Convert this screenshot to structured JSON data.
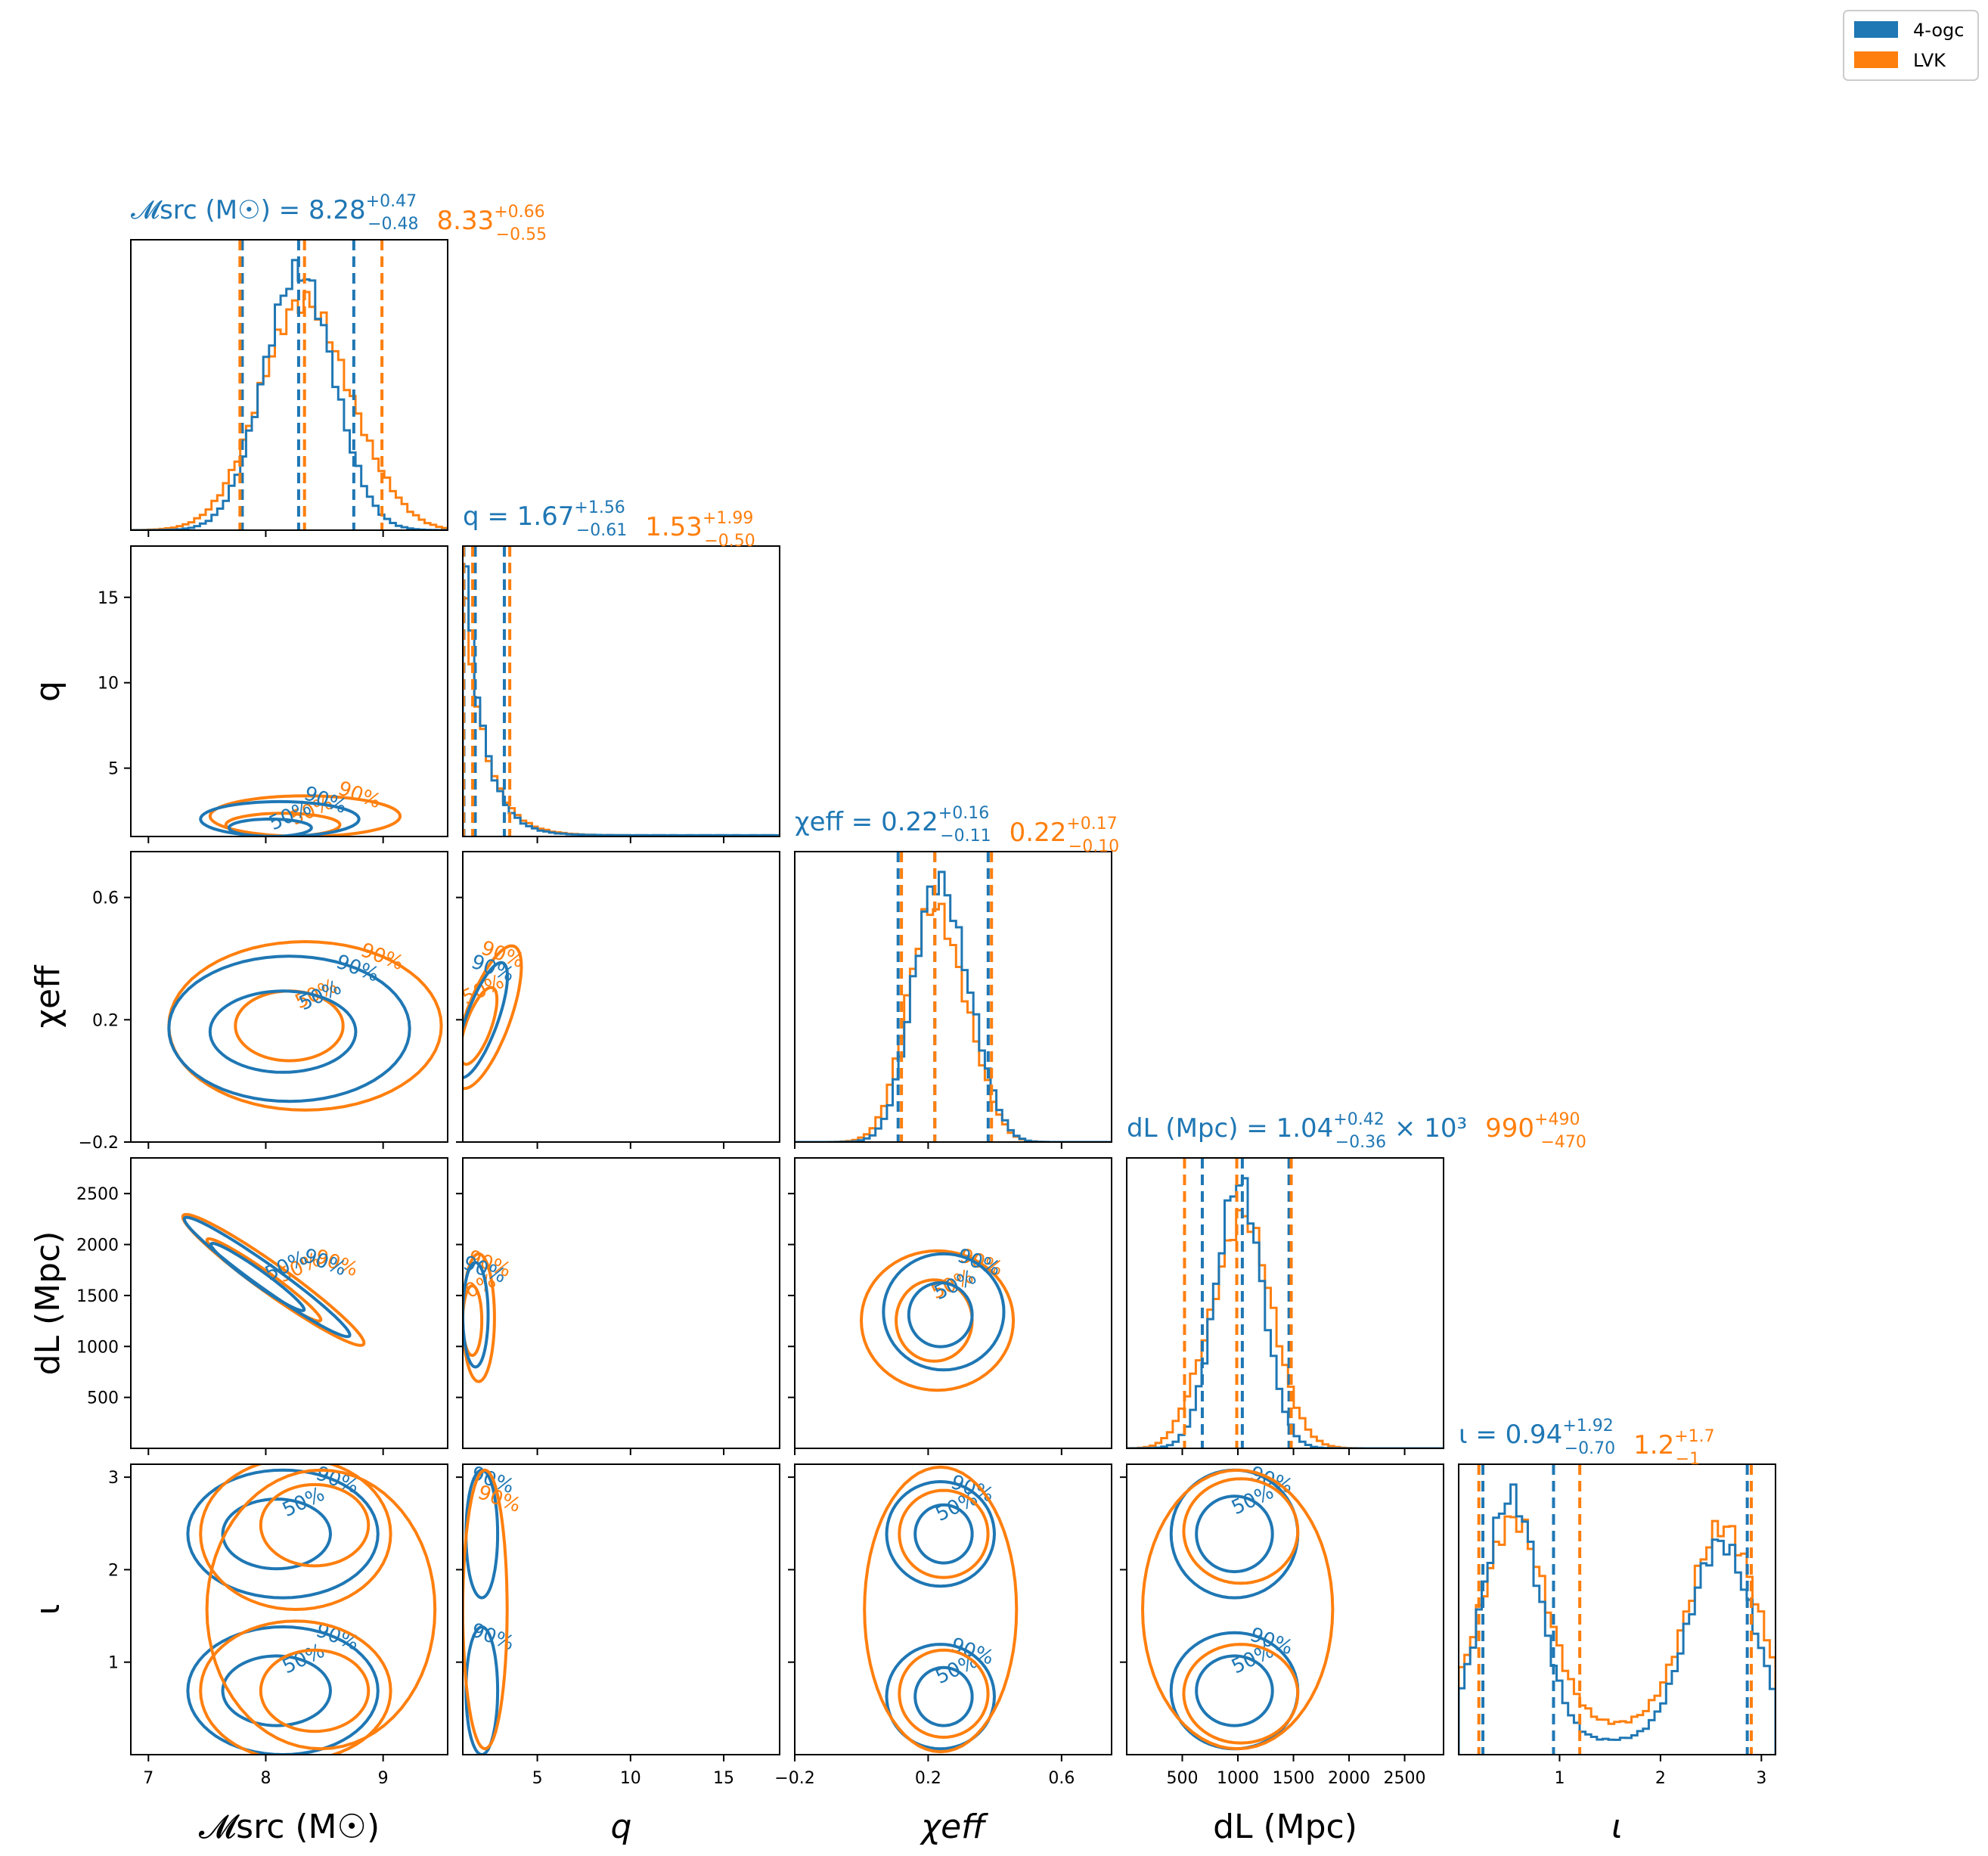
{
  "legend": {
    "placement": "top-right",
    "entries": [
      {
        "label": "4-ogc",
        "color": "#1f77b4"
      },
      {
        "label": "LVK",
        "color": "#ff7f0e"
      }
    ]
  },
  "colors": {
    "ogc": "#1f77b4",
    "lvk": "#ff7f0e"
  },
  "contour_labels": {
    "p50": "50%",
    "p90": "90%"
  },
  "chart_data": {
    "type": "corner",
    "parameters": [
      {
        "key": "mc",
        "axis_label": "𝓜src (M☉)",
        "range": [
          6.85,
          9.55
        ],
        "ticks": [
          {
            "v": 7,
            "l": "7"
          },
          {
            "v": 8,
            "l": "8"
          },
          {
            "v": 9,
            "l": "9"
          }
        ],
        "title_blue": {
          "name": "𝓜src (M☉)",
          "median": "8.28",
          "plus": "+0.47",
          "minus": "−0.48"
        },
        "title_orange": {
          "median": "8.33",
          "plus": "+0.66",
          "minus": "−0.55"
        },
        "quantiles_blue": [
          7.8,
          8.28,
          8.75
        ],
        "quantiles_orange": [
          7.78,
          8.33,
          8.99
        ]
      },
      {
        "key": "q",
        "axis_label": "q",
        "range": [
          1.0,
          18.0
        ],
        "ticks": [
          {
            "v": 5,
            "l": "5"
          },
          {
            "v": 10,
            "l": "10"
          },
          {
            "v": 15,
            "l": "15"
          }
        ],
        "title_blue": {
          "name": "q",
          "median": "1.67",
          "plus": "+1.56",
          "minus": "−0.61"
        },
        "title_orange": {
          "median": "1.53",
          "plus": "+1.99",
          "minus": "−0.50"
        },
        "quantiles_blue": [
          1.06,
          1.67,
          3.23
        ],
        "quantiles_orange": [
          1.03,
          1.53,
          3.52
        ]
      },
      {
        "key": "chi",
        "axis_label": "χeff",
        "range": [
          -0.2,
          0.75
        ],
        "ticks": [
          {
            "v": -0.2,
            "l": "−0.2"
          },
          {
            "v": 0.2,
            "l": "0.2"
          },
          {
            "v": 0.6,
            "l": "0.6"
          }
        ],
        "title_blue": {
          "name": "χeff",
          "median": "0.22",
          "plus": "+0.16",
          "minus": "−0.11"
        },
        "title_orange": {
          "median": "0.22",
          "plus": "+0.17",
          "minus": "−0.10"
        },
        "quantiles_blue": [
          0.11,
          0.22,
          0.38
        ],
        "quantiles_orange": [
          0.12,
          0.22,
          0.39
        ]
      },
      {
        "key": "dl",
        "axis_label": "dL (Mpc)",
        "range": [
          0,
          2850
        ],
        "ticks": [
          {
            "v": 500,
            "l": "500"
          },
          {
            "v": 1000,
            "l": "1000"
          },
          {
            "v": 1500,
            "l": "1500"
          },
          {
            "v": 2000,
            "l": "2000"
          },
          {
            "v": 2500,
            "l": "2500"
          }
        ],
        "title_blue": {
          "name": "dL (Mpc)",
          "median": "1.04",
          "plus": "+0.42",
          "minus": "−0.36",
          "suffix": "× 10³"
        },
        "title_orange": {
          "median": "990",
          "plus": "+490",
          "minus": "−470"
        },
        "quantiles_blue": [
          680,
          1040,
          1460
        ],
        "quantiles_orange": [
          520,
          990,
          1480
        ]
      },
      {
        "key": "inc",
        "axis_label": "ι",
        "range": [
          0.0,
          3.14
        ],
        "ticks": [
          {
            "v": 1,
            "l": "1"
          },
          {
            "v": 2,
            "l": "2"
          },
          {
            "v": 3,
            "l": "3"
          }
        ],
        "title_blue": {
          "name": "ι",
          "median": "0.94",
          "plus": "+1.92",
          "minus": "−0.70"
        },
        "title_orange": {
          "median": "1.2",
          "plus": "+1.7",
          "minus": "−1"
        },
        "quantiles_blue": [
          0.24,
          0.94,
          2.86
        ],
        "quantiles_orange": [
          0.2,
          1.2,
          2.9
        ]
      }
    ]
  }
}
